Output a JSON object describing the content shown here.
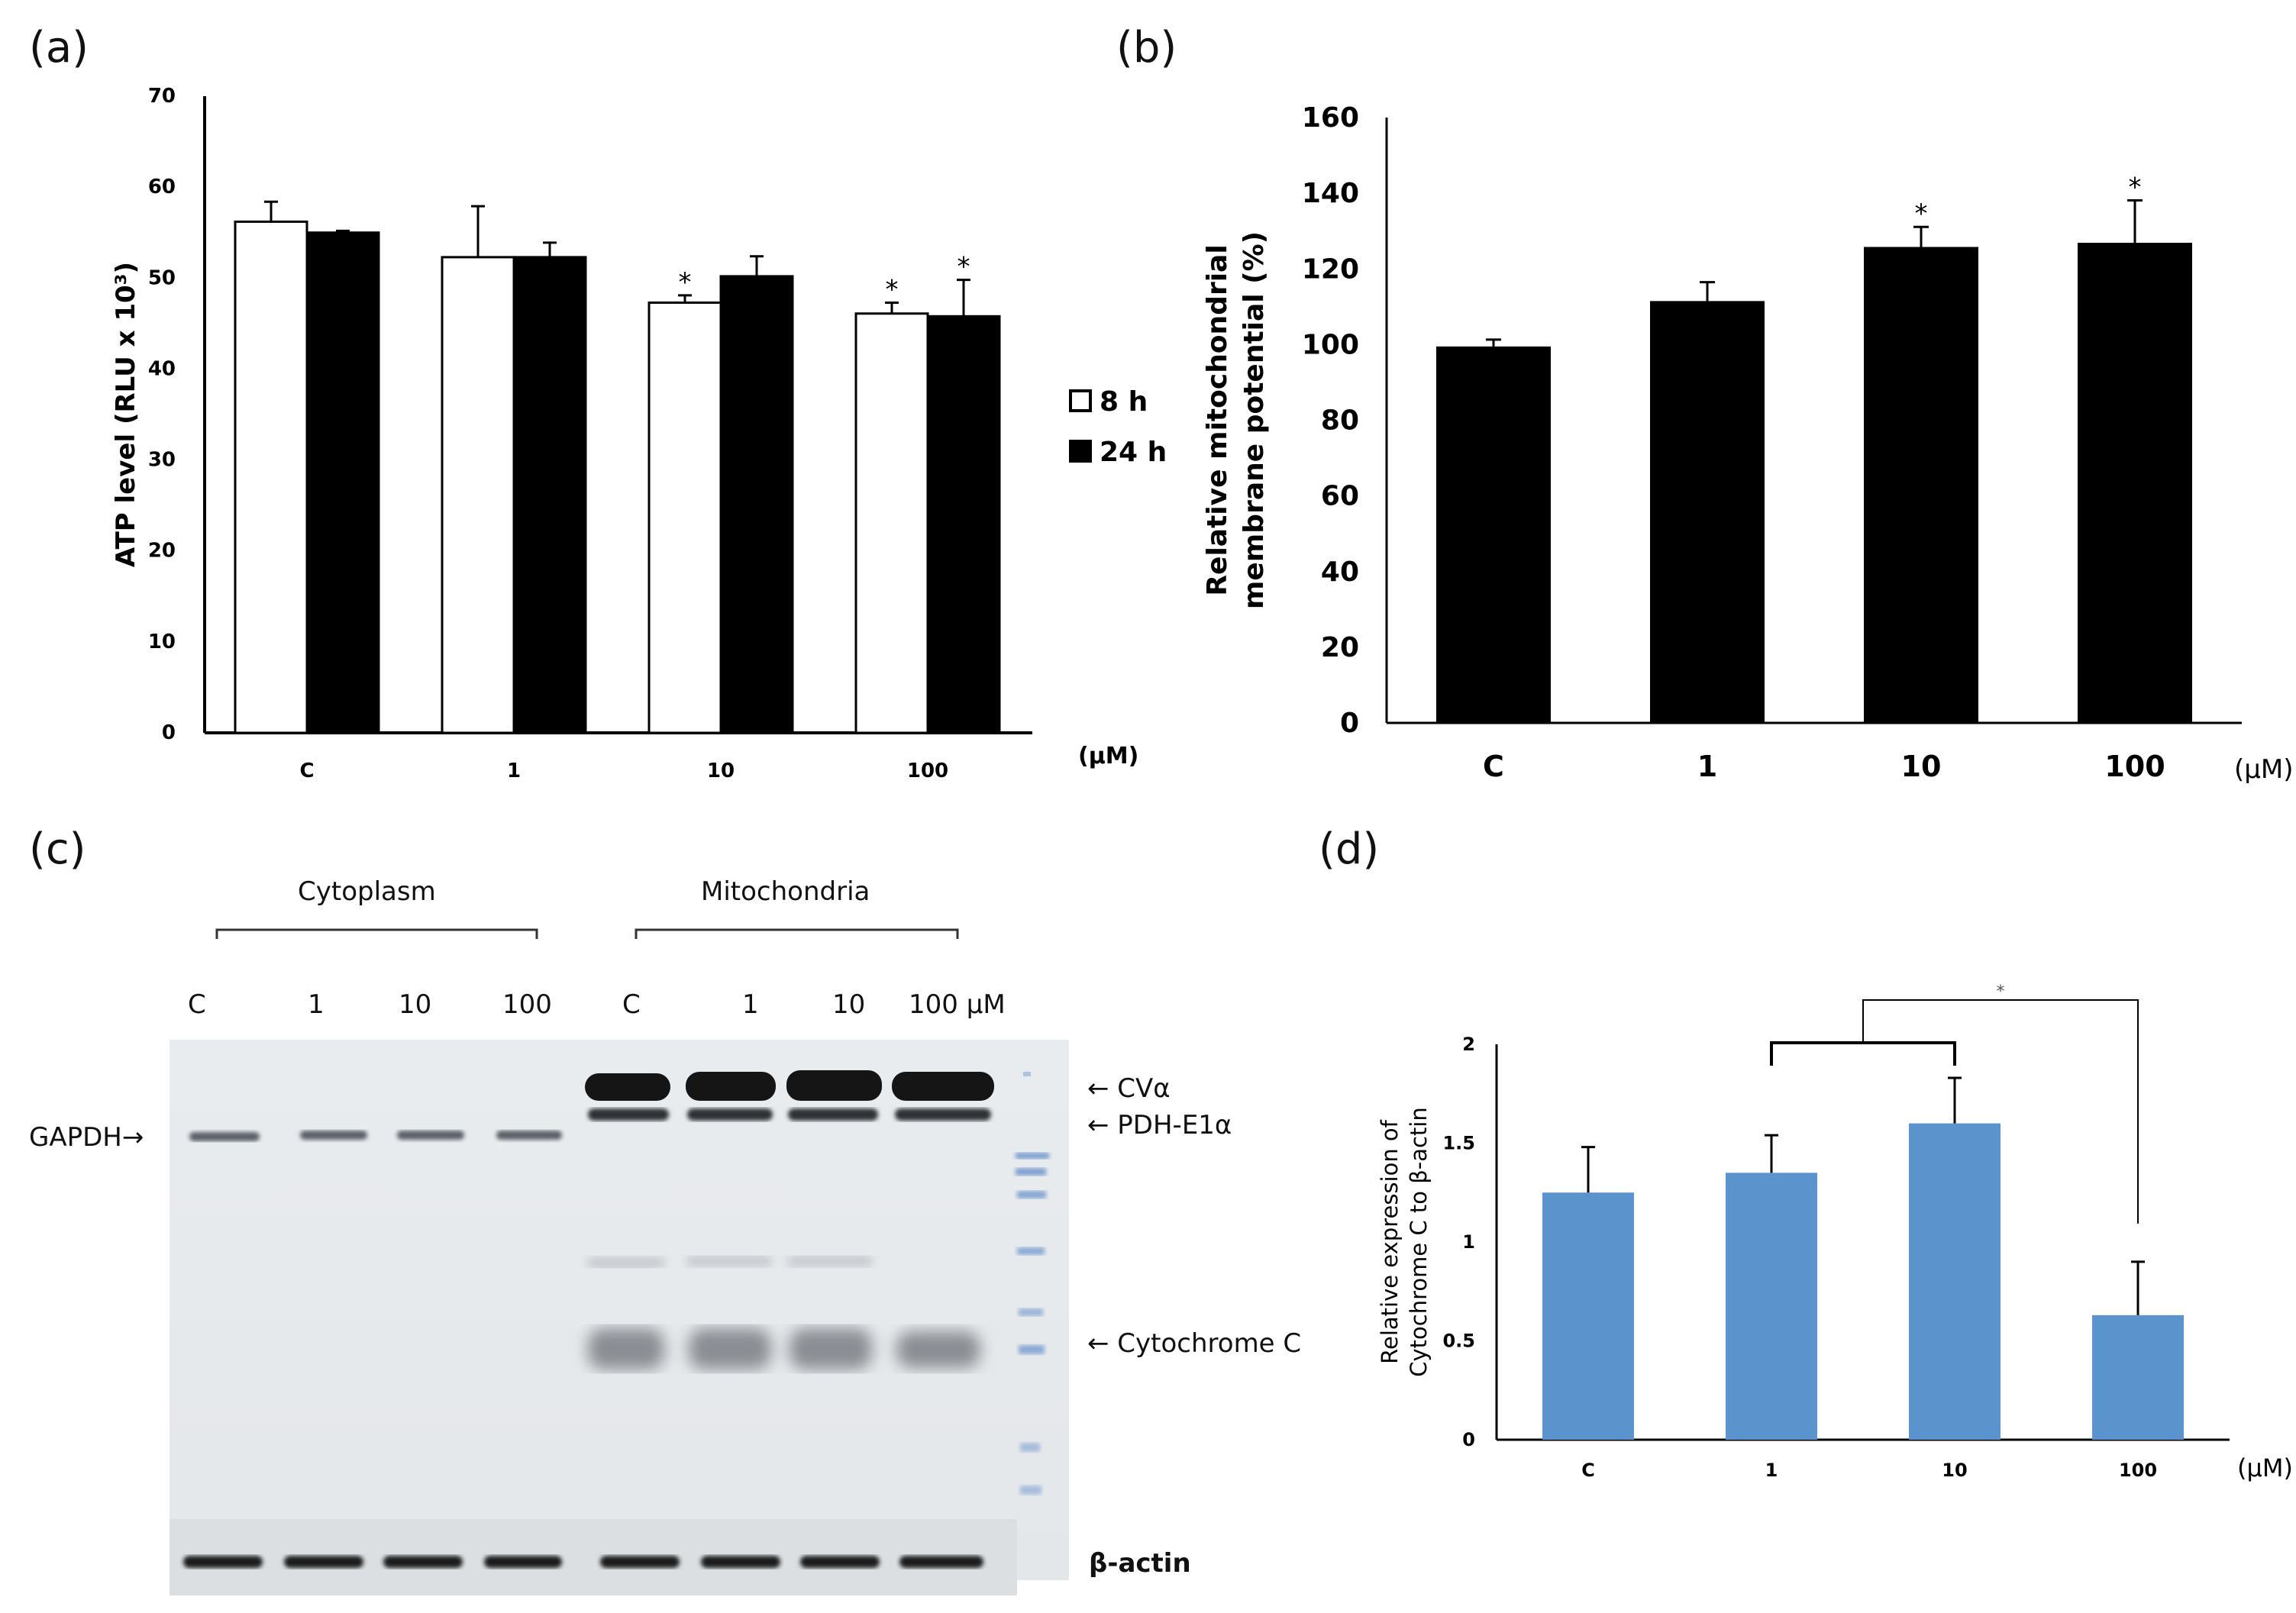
{
  "panels": {
    "a": "(a)",
    "b": "(b)",
    "c": "(c)",
    "d": "(d)"
  },
  "chart_data": [
    {
      "id": "a",
      "type": "bar",
      "title": "",
      "ylabel": "ATP level (RLU x 10³)",
      "xlabel": "",
      "unit_label": "(μM)",
      "categories": [
        "C",
        "1",
        "10",
        "100"
      ],
      "ylim": [
        0,
        70
      ],
      "yticks": [
        0,
        10,
        20,
        30,
        40,
        50,
        60,
        70
      ],
      "series": [
        {
          "name": "8 h",
          "color": "#ffffff",
          "stroke": "#000000",
          "values": [
            56.2,
            52.3,
            47.3,
            46.1
          ],
          "errors": [
            2.2,
            5.6,
            0.8,
            1.2
          ],
          "significant": [
            false,
            false,
            true,
            true
          ]
        },
        {
          "name": "24 h",
          "color": "#000000",
          "stroke": "#000000",
          "values": [
            55.0,
            52.3,
            50.2,
            45.8
          ],
          "errors": [
            0.2,
            1.6,
            2.2,
            4.0
          ],
          "significant": [
            false,
            false,
            false,
            true
          ]
        }
      ],
      "legend": [
        "8 h",
        "24 h"
      ],
      "sig_marker": "*"
    },
    {
      "id": "b",
      "type": "bar",
      "title": "",
      "ylabel_line1": "Relative mitochondrial",
      "ylabel_line2": "membrane potential (%)",
      "unit_label": "(μM)",
      "categories": [
        "C",
        "1",
        "10",
        "100"
      ],
      "ylim": [
        0,
        160
      ],
      "yticks": [
        0,
        20,
        40,
        60,
        80,
        100,
        120,
        140,
        160
      ],
      "series": [
        {
          "name": "membrane potential",
          "color": "#000000",
          "values": [
            99.5,
            111.5,
            125.8,
            126.9
          ],
          "errors": [
            1.8,
            5.0,
            5.3,
            11.2
          ],
          "significant": [
            false,
            false,
            true,
            true
          ]
        }
      ],
      "sig_marker": "*"
    },
    {
      "id": "d",
      "type": "bar",
      "title": "",
      "ylabel_line1": "Relative expression of",
      "ylabel_line2": "Cytochrome C to β-actin",
      "unit_label": "(μM)",
      "categories": [
        "C",
        "1",
        "10",
        "100"
      ],
      "ylim": [
        0,
        2
      ],
      "yticks": [
        0,
        0.5,
        1,
        1.5,
        2
      ],
      "ytick_labels": [
        "0",
        "0.5",
        "1",
        "1.5",
        "2"
      ],
      "series": [
        {
          "name": "Cytochrome C",
          "color": "#5b93cc",
          "values": [
            1.25,
            1.35,
            1.6,
            0.63
          ],
          "errors": [
            0.23,
            0.19,
            0.23,
            0.27
          ]
        }
      ],
      "bracket_marker": "*"
    }
  ],
  "blot": {
    "group_cytoplasm": "Cytoplasm",
    "group_mitochondria": "Mitochondria",
    "lanes": [
      "C",
      "1",
      "10",
      "100",
      "C",
      "1",
      "10",
      "100 μM"
    ],
    "label_gapdh": "GAPDH→",
    "label_cva": "← CVα",
    "label_pdh": "← PDH-E1α",
    "label_cytc": "← Cytochrome  C",
    "label_actin": "β-actin"
  }
}
